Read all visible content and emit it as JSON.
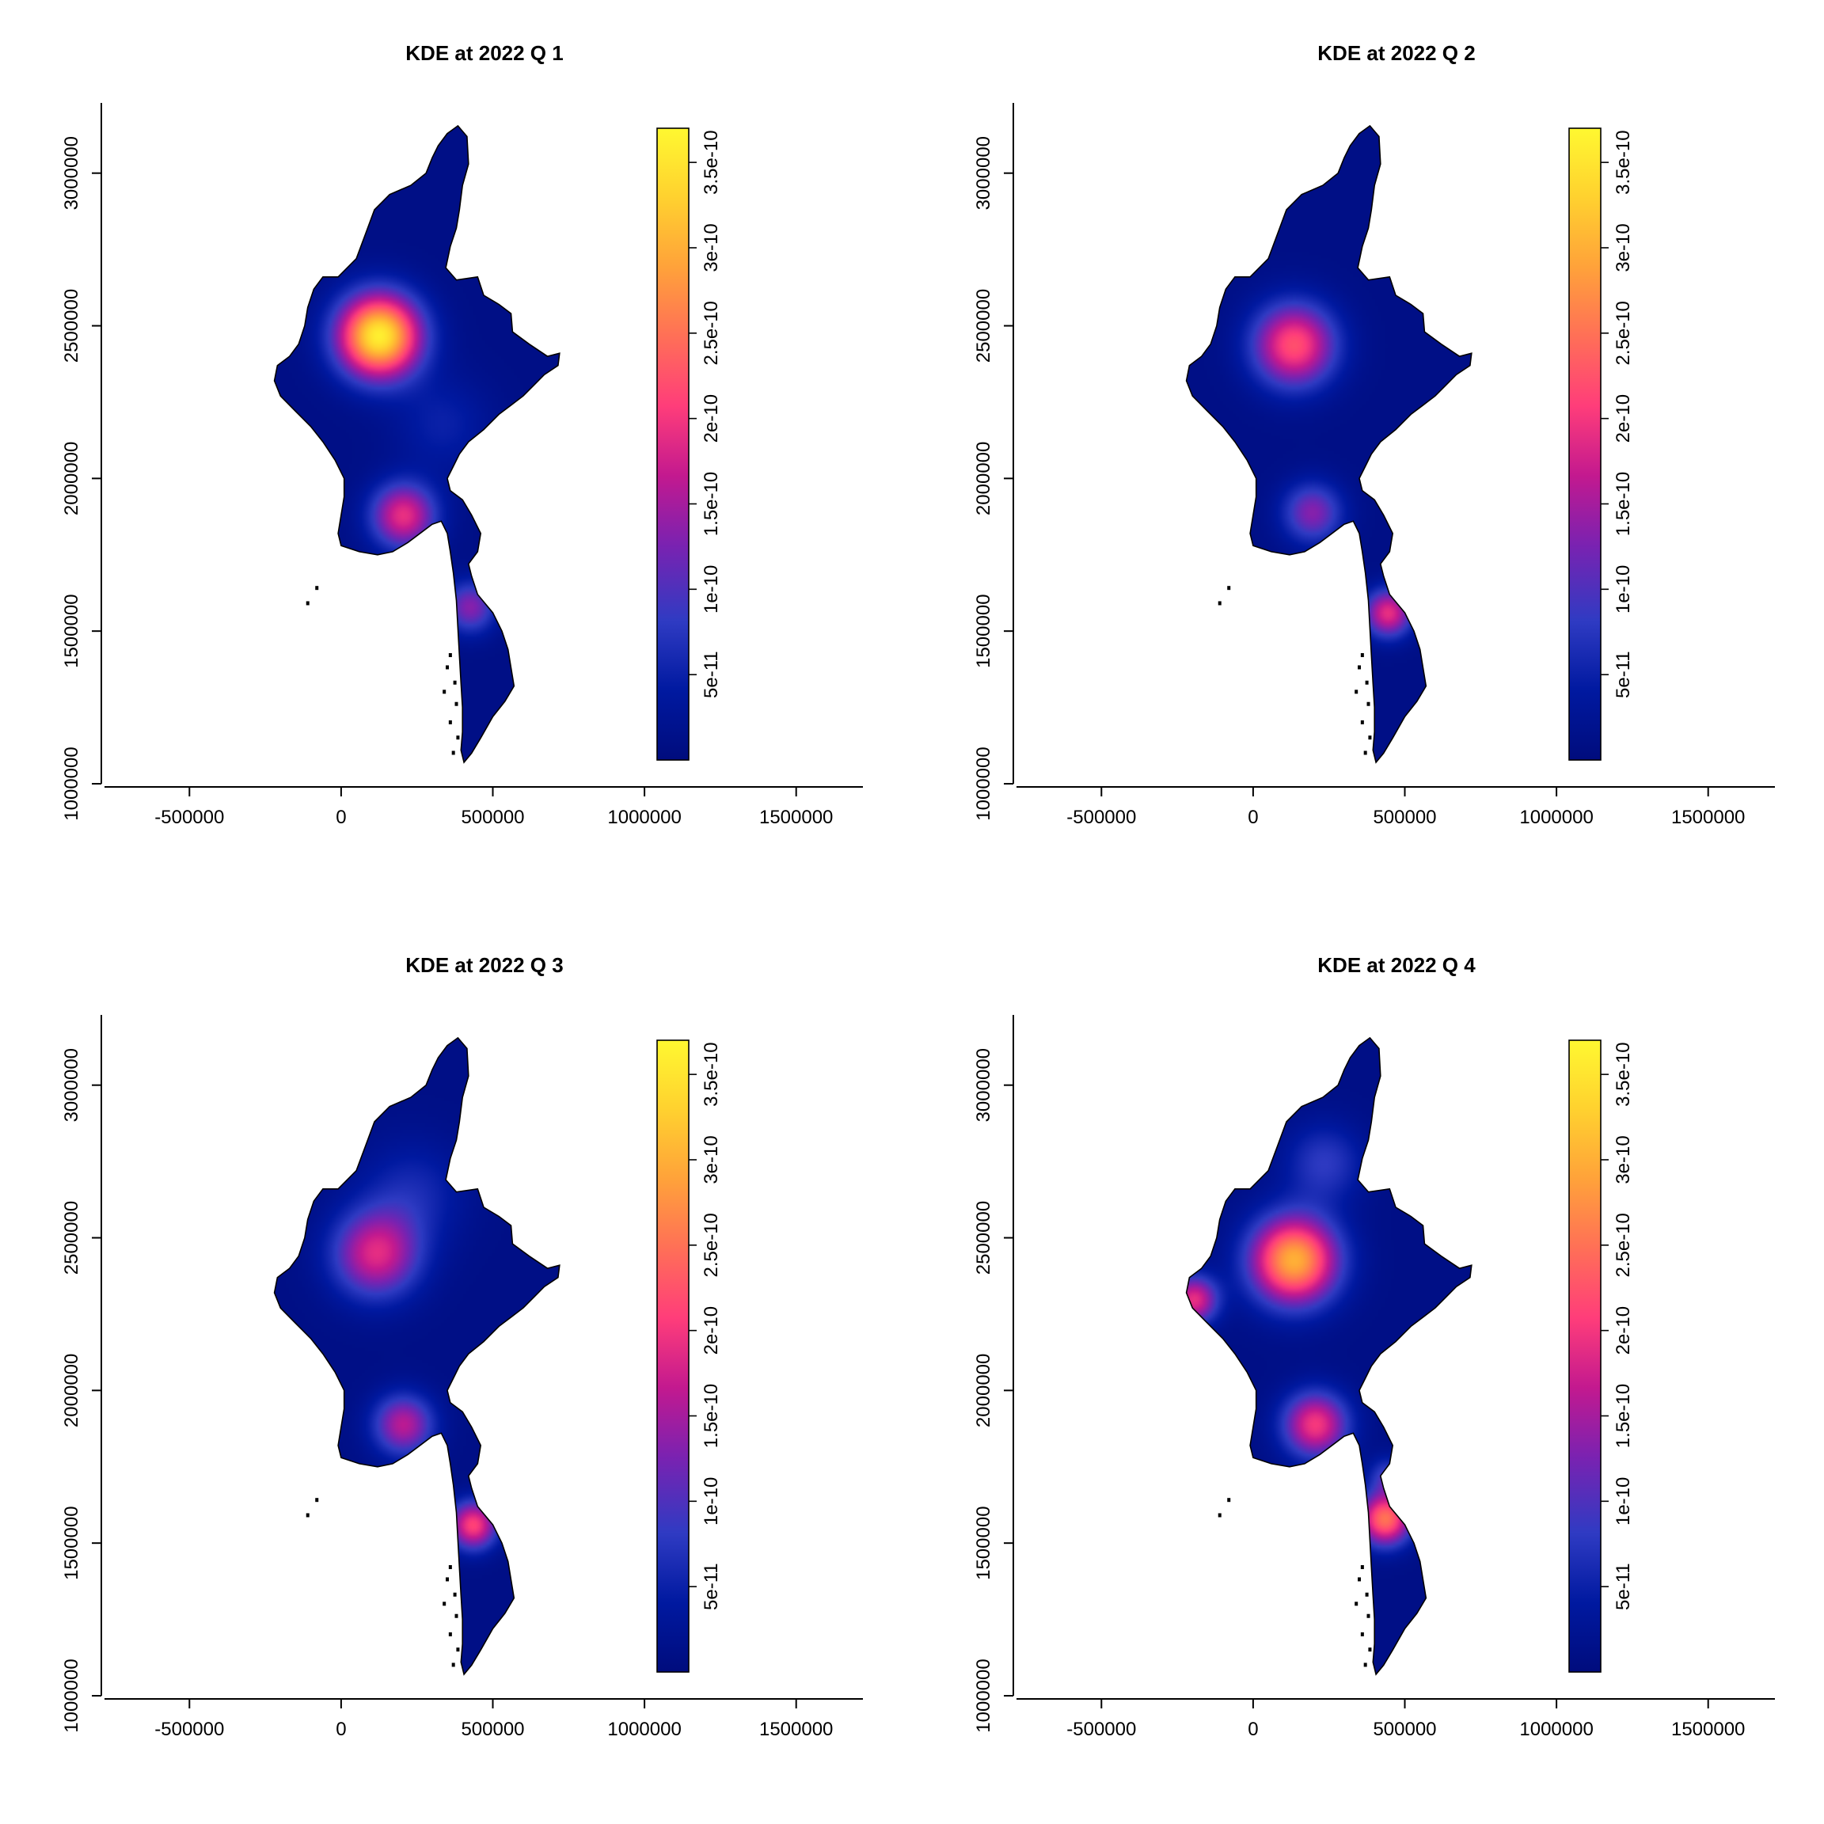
{
  "chart_data": [
    {
      "type": "heatmap",
      "title": "KDE at 2022 Q 1",
      "xlim": [
        -780000,
        1720000
      ],
      "ylim": [
        1000000,
        3230000
      ],
      "x_ticks": [
        -500000,
        0,
        500000,
        1000000,
        1500000
      ],
      "x_tick_labels": [
        "-500000",
        "0",
        "500000",
        "1000000",
        "1500000"
      ],
      "y_ticks": [
        1000000,
        1500000,
        2000000,
        2500000,
        3000000
      ],
      "y_tick_labels": [
        "1000000",
        "1500000",
        "2000000",
        "2500000",
        "3000000"
      ],
      "colorbar": {
        "range": [
          0,
          3.7e-10
        ],
        "ticks": [
          5e-11,
          1e-10,
          1.5e-10,
          2e-10,
          2.5e-10,
          3e-10,
          3.5e-10
        ],
        "tick_labels": [
          "5e-11",
          "1e-10",
          "1.5e-10",
          "2e-10",
          "2.5e-10",
          "3e-10",
          "3.5e-10"
        ]
      },
      "hotspots": [
        {
          "x": 120000,
          "y": 2470000,
          "sigma": 95000,
          "density": 3.5e-10
        },
        {
          "x": 200000,
          "y": 1880000,
          "sigma": 75000,
          "density": 1.8e-10
        },
        {
          "x": 420000,
          "y": 1580000,
          "sigma": 60000,
          "density": 1.2e-10
        },
        {
          "x": 330000,
          "y": 2180000,
          "sigma": 110000,
          "density": 4e-11
        }
      ]
    },
    {
      "type": "heatmap",
      "title": "KDE at 2022 Q 2",
      "xlim": [
        -780000,
        1720000
      ],
      "ylim": [
        1000000,
        3230000
      ],
      "x_ticks": [
        -500000,
        0,
        500000,
        1000000,
        1500000
      ],
      "x_tick_labels": [
        "-500000",
        "0",
        "500000",
        "1000000",
        "1500000"
      ],
      "y_ticks": [
        1000000,
        1500000,
        2000000,
        2500000,
        3000000
      ],
      "y_tick_labels": [
        "1000000",
        "1500000",
        "2000000",
        "2500000",
        "3000000"
      ],
      "colorbar": {
        "range": [
          0,
          3.7e-10
        ],
        "ticks": [
          5e-11,
          1e-10,
          1.5e-10,
          2e-10,
          2.5e-10,
          3e-10,
          3.5e-10
        ],
        "tick_labels": [
          "5e-11",
          "1e-10",
          "1.5e-10",
          "2e-10",
          "2.5e-10",
          "3e-10",
          "3.5e-10"
        ]
      },
      "hotspots": [
        {
          "x": 130000,
          "y": 2440000,
          "sigma": 95000,
          "density": 2.1e-10
        },
        {
          "x": 190000,
          "y": 1890000,
          "sigma": 70000,
          "density": 1.2e-10
        },
        {
          "x": 440000,
          "y": 1560000,
          "sigma": 55000,
          "density": 1.8e-10
        }
      ]
    },
    {
      "type": "heatmap",
      "title": "KDE at 2022 Q 3",
      "xlim": [
        -780000,
        1720000
      ],
      "ylim": [
        1000000,
        3230000
      ],
      "x_ticks": [
        -500000,
        0,
        500000,
        1000000,
        1500000
      ],
      "x_tick_labels": [
        "-500000",
        "0",
        "500000",
        "1000000",
        "1500000"
      ],
      "y_ticks": [
        1000000,
        1500000,
        2000000,
        2500000,
        3000000
      ],
      "y_tick_labels": [
        "1000000",
        "1500000",
        "2000000",
        "2500000",
        "3000000"
      ],
      "colorbar": {
        "range": [
          0,
          3.7e-10
        ],
        "ticks": [
          5e-11,
          1e-10,
          1.5e-10,
          2e-10,
          2.5e-10,
          3e-10,
          3.5e-10
        ],
        "tick_labels": [
          "5e-11",
          "1e-10",
          "1.5e-10",
          "2e-10",
          "2.5e-10",
          "3e-10",
          "3.5e-10"
        ]
      },
      "hotspots": [
        {
          "x": 110000,
          "y": 2450000,
          "sigma": 100000,
          "density": 1.7e-10
        },
        {
          "x": 200000,
          "y": 1890000,
          "sigma": 70000,
          "density": 1.5e-10
        },
        {
          "x": 430000,
          "y": 1560000,
          "sigma": 55000,
          "density": 2e-10
        },
        {
          "x": 230000,
          "y": 2650000,
          "sigma": 120000,
          "density": 5e-11
        }
      ]
    },
    {
      "type": "heatmap",
      "title": "KDE at 2022 Q 4",
      "xlim": [
        -780000,
        1720000
      ],
      "ylim": [
        1000000,
        3230000
      ],
      "x_ticks": [
        -500000,
        0,
        500000,
        1000000,
        1500000
      ],
      "x_tick_labels": [
        "-500000",
        "0",
        "500000",
        "1000000",
        "1500000"
      ],
      "y_ticks": [
        1000000,
        1500000,
        2000000,
        2500000,
        3000000
      ],
      "y_tick_labels": [
        "1000000",
        "1500000",
        "2000000",
        "2500000",
        "3000000"
      ],
      "colorbar": {
        "range": [
          0,
          3.7e-10
        ],
        "ticks": [
          5e-11,
          1e-10,
          1.5e-10,
          2e-10,
          2.5e-10,
          3e-10,
          3.5e-10
        ],
        "tick_labels": [
          "5e-11",
          "1e-10",
          "1.5e-10",
          "2e-10",
          "2.5e-10",
          "3e-10",
          "3.5e-10"
        ]
      },
      "hotspots": [
        {
          "x": 130000,
          "y": 2430000,
          "sigma": 100000,
          "density": 2.9e-10
        },
        {
          "x": 200000,
          "y": 1890000,
          "sigma": 75000,
          "density": 1.9e-10
        },
        {
          "x": 430000,
          "y": 1580000,
          "sigma": 60000,
          "density": 2.4e-10
        },
        {
          "x": -200000,
          "y": 2300000,
          "sigma": 55000,
          "density": 1.8e-10
        },
        {
          "x": 230000,
          "y": 2750000,
          "sigma": 90000,
          "density": 7e-11
        },
        {
          "x": 440000,
          "y": 1720000,
          "sigma": 45000,
          "density": 8e-11
        }
      ]
    }
  ],
  "colors": {
    "palette": [
      "#000C7D",
      "#0019A0",
      "#2F3BC3",
      "#7A22B1",
      "#C3198F",
      "#FF3D7A",
      "#FF6F57",
      "#FFA23A",
      "#FFD12F",
      "#FFF830"
    ],
    "outline": "#000000",
    "background": "#FFFFFF"
  }
}
